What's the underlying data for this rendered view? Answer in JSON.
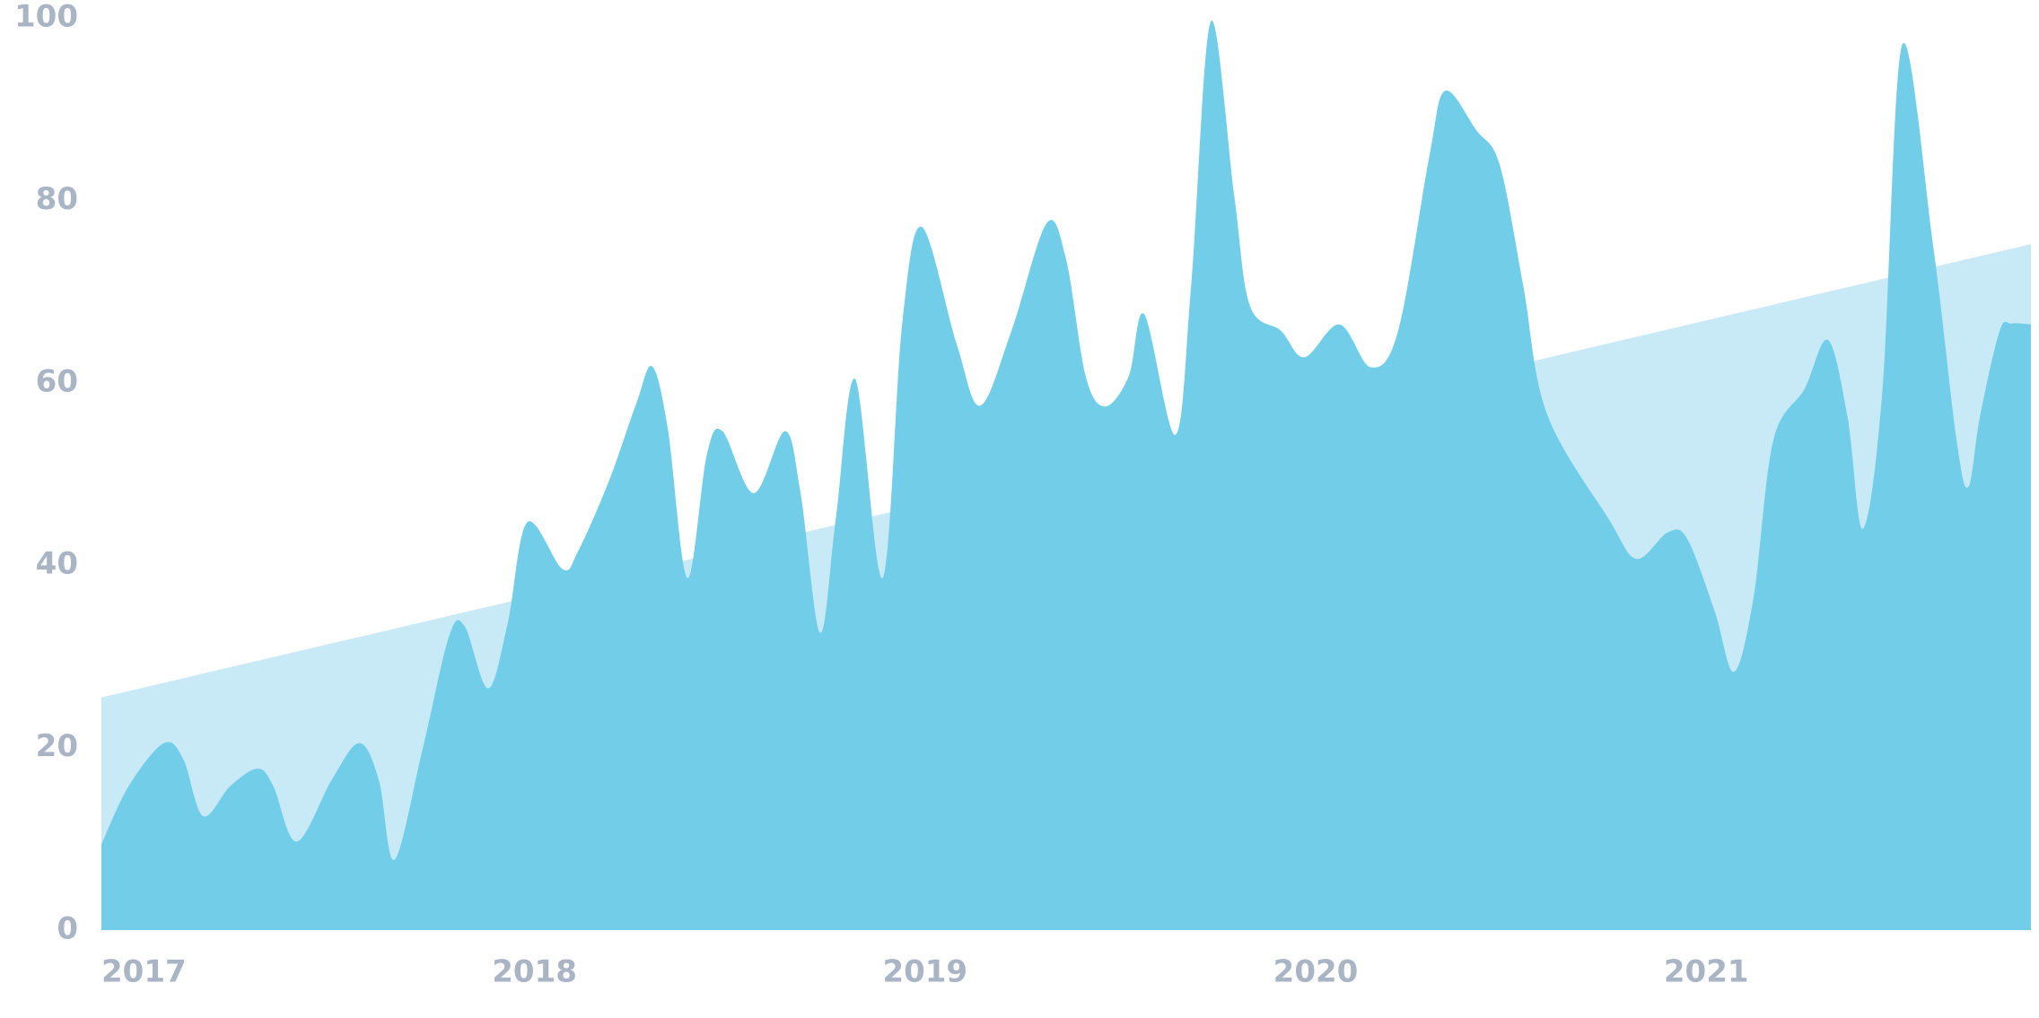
{
  "chart_data": {
    "type": "area",
    "xlim": [
      2017,
      2021.94
    ],
    "xticks": [
      2017,
      2018,
      2019,
      2020,
      2021
    ],
    "ylim": [
      0,
      100
    ],
    "yticks": [
      0,
      20,
      40,
      60,
      80,
      100
    ],
    "grid": false,
    "series": [
      {
        "color": "#c8e9f6",
        "x": [
          2017,
          2021.94
        ],
        "values": [
          25.5,
          75.2
        ]
      },
      {
        "color": "#72cde9",
        "x": [
          2017,
          2017.07,
          2017.16,
          2017.21,
          2017.26,
          2017.33,
          2017.4,
          2017.44,
          2017.5,
          2017.59,
          2017.66,
          2017.71,
          2017.75,
          2017.82,
          2017.89,
          2017.93,
          2017.99,
          2018.04,
          2018.09,
          2018.18,
          2018.22,
          2018.3,
          2018.37,
          2018.41,
          2018.45,
          2018.5,
          2018.55,
          2018.59,
          2018.67,
          2018.75,
          2018.79,
          2018.84,
          2018.88,
          2018.93,
          2019,
          2019.05,
          2019.1,
          2019.19,
          2019.25,
          2019.33,
          2019.42,
          2019.47,
          2019.52,
          2019.57,
          2019.63,
          2019.67,
          2019.75,
          2019.79,
          2019.84,
          2019.9,
          2019.94,
          2020.02,
          2020.08,
          2020.17,
          2020.25,
          2020.32,
          2020.4,
          2020.44,
          2020.52,
          2020.58,
          2020.64,
          2020.7,
          2020.86,
          2020.93,
          2021.01,
          2021.06,
          2021.13,
          2021.18,
          2021.23,
          2021.28,
          2021.36,
          2021.42,
          2021.47,
          2021.51,
          2021.56,
          2021.61,
          2021.69,
          2021.75,
          2021.78,
          2021.81,
          2021.86,
          2021.89,
          2021.94
        ],
        "values": [
          9.4,
          15.8,
          20.5,
          18.7,
          12.5,
          15.8,
          17.7,
          15.8,
          9.7,
          16.5,
          20.5,
          16.5,
          7.7,
          19.4,
          32.2,
          33.3,
          26.5,
          33.6,
          44.7,
          39.6,
          41.5,
          49.3,
          57.8,
          61.8,
          55,
          38.6,
          52.1,
          54.7,
          47.9,
          54.7,
          47.9,
          32.6,
          45,
          60.4,
          38.6,
          66.4,
          77.1,
          64.2,
          57.5,
          65.7,
          77.5,
          73.5,
          60.7,
          57.4,
          60.7,
          67.5,
          54.3,
          70.7,
          99.6,
          80.6,
          68.5,
          65.7,
          62.8,
          66.4,
          61.7,
          65.7,
          84.9,
          92,
          87.7,
          83.9,
          70.7,
          56.7,
          45,
          40.7,
          43.6,
          42.9,
          35,
          28.3,
          36.5,
          53.6,
          59.3,
          64.7,
          56.4,
          44,
          59.3,
          97,
          74.9,
          53.6,
          48.6,
          56.4,
          65.7,
          66.5,
          66.4
        ]
      }
    ]
  }
}
